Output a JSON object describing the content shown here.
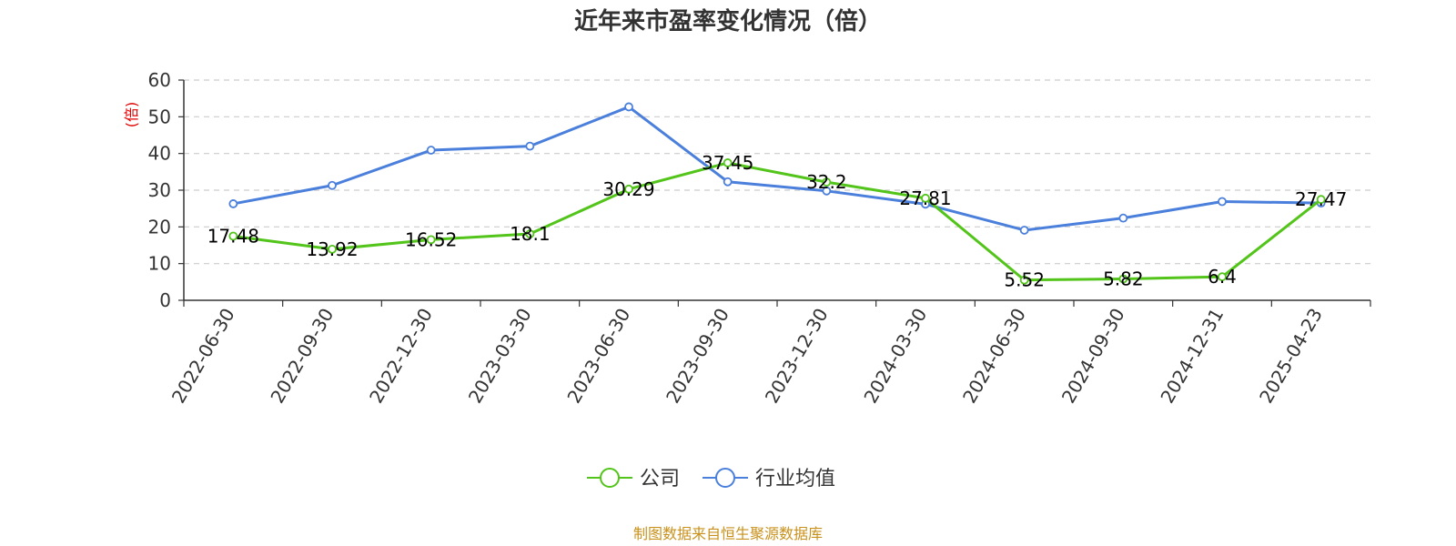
{
  "colors": {
    "company": "#52c41a",
    "industry": "#4a7fdc",
    "ylabel": "#e00000",
    "source": "#c8911b"
  },
  "chart_data": {
    "type": "line",
    "title": "近年来市盈率变化情况（倍）",
    "ylabel": "(倍)",
    "xlabel": "",
    "ylim": [
      0,
      60
    ],
    "yticks": [
      0,
      10,
      20,
      30,
      40,
      50,
      60
    ],
    "grid": true,
    "legend_position": "bottom",
    "categories": [
      "2022-06-30",
      "2022-09-30",
      "2022-12-30",
      "2023-03-30",
      "2023-06-30",
      "2023-09-30",
      "2023-12-30",
      "2024-03-30",
      "2024-06-30",
      "2024-09-30",
      "2024-12-31",
      "2025-04-23"
    ],
    "series": [
      {
        "name": "公司",
        "values": [
          17.48,
          13.92,
          16.52,
          18.1,
          30.29,
          37.45,
          32.2,
          27.81,
          5.52,
          5.82,
          6.4,
          27.47
        ],
        "labels": [
          "17.48",
          "13.92",
          "16.52",
          "18.1",
          "30.29",
          "37.45",
          "32.2",
          "27.81",
          "5.52",
          "5.82",
          "6.4",
          "27.47"
        ]
      },
      {
        "name": "行业均值",
        "values": [
          26.3,
          31.3,
          40.9,
          42.0,
          52.7,
          32.3,
          29.8,
          26.2,
          19.1,
          22.4,
          26.9,
          26.5
        ]
      }
    ],
    "source": "制图数据来自恒生聚源数据库"
  }
}
